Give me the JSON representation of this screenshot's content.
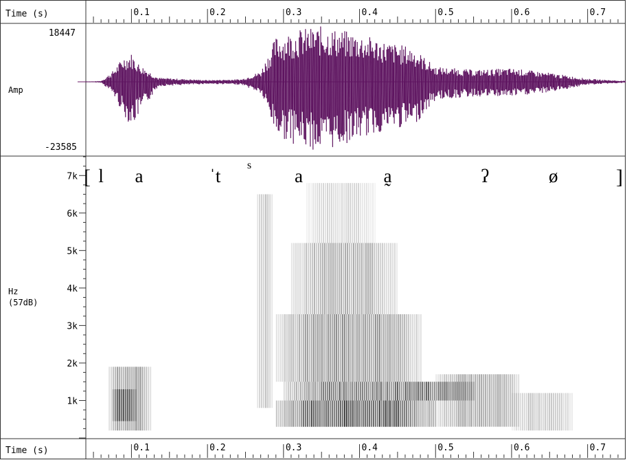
{
  "time_axis": {
    "label": "Time (s)",
    "ticks": [
      "0.1",
      "0.2",
      "0.3",
      "0.4",
      "0.5",
      "0.6",
      "0.7"
    ]
  },
  "waveform": {
    "ylabel": "Amp",
    "max_label": "18447",
    "min_label": "-23585"
  },
  "spectrogram": {
    "ylabel_line1": "Hz",
    "ylabel_line2": "(57dB)",
    "freq_ticks": [
      "7k",
      "6k",
      "5k",
      "4k",
      "3k",
      "2k",
      "1k"
    ]
  },
  "transcription": {
    "open": "[",
    "close": "]",
    "segments": [
      {
        "text": "l",
        "t": 0.06
      },
      {
        "text": "a",
        "t": 0.11
      },
      {
        "text": "ˈt",
        "t": 0.21
      },
      {
        "text": "s",
        "t": 0.255,
        "superscript": true
      },
      {
        "text": "a",
        "t": 0.32
      },
      {
        "text": "a̰",
        "t": 0.437
      },
      {
        "text": "ʔ",
        "t": 0.565
      },
      {
        "text": "ø",
        "t": 0.655
      }
    ]
  },
  "chart_data": {
    "type": "area",
    "title": "",
    "xlabel": "Time (s)",
    "xlim": [
      0.04,
      0.75
    ],
    "waveform": {
      "ylabel": "Amp",
      "ylim": [
        -23585,
        18447
      ],
      "envelope": {
        "t": [
          0.04,
          0.06,
          0.075,
          0.09,
          0.1,
          0.11,
          0.135,
          0.15,
          0.2,
          0.245,
          0.27,
          0.29,
          0.32,
          0.35,
          0.4,
          0.44,
          0.47,
          0.5,
          0.55,
          0.6,
          0.65,
          0.7,
          0.75
        ],
        "upper": [
          0,
          300,
          3500,
          8500,
          9500,
          6000,
          1400,
          1200,
          600,
          900,
          3500,
          15000,
          17500,
          18447,
          16000,
          13000,
          11500,
          5000,
          4000,
          4500,
          3000,
          1000,
          300
        ],
        "lower": [
          0,
          -300,
          -4000,
          -11500,
          -15000,
          -11000,
          -1500,
          -1300,
          -700,
          -1000,
          -4000,
          -18000,
          -21500,
          -23585,
          -19000,
          -16000,
          -15000,
          -6000,
          -5000,
          -5000,
          -3500,
          -1000,
          -300
        ]
      }
    },
    "spectrogram": {
      "ylabel": "Hz",
      "ylim": [
        0,
        7500
      ],
      "bands": [
        {
          "t0": 0.07,
          "t1": 0.125,
          "f0": 200,
          "f1": 1900,
          "intensity": 0.55
        },
        {
          "t0": 0.075,
          "t1": 0.105,
          "f0": 450,
          "f1": 1300,
          "intensity": 0.75
        },
        {
          "t0": 0.265,
          "t1": 0.285,
          "f0": 800,
          "f1": 6500,
          "intensity": 0.3
        },
        {
          "t0": 0.29,
          "t1": 0.5,
          "f0": 300,
          "f1": 1000,
          "intensity": 0.9
        },
        {
          "t0": 0.3,
          "t1": 0.55,
          "f0": 1000,
          "f1": 1500,
          "intensity": 0.75
        },
        {
          "t0": 0.29,
          "t1": 0.48,
          "f0": 1500,
          "f1": 3300,
          "intensity": 0.55
        },
        {
          "t0": 0.31,
          "t1": 0.45,
          "f0": 3300,
          "f1": 5200,
          "intensity": 0.4
        },
        {
          "t0": 0.33,
          "t1": 0.42,
          "f0": 5200,
          "f1": 6800,
          "intensity": 0.2
        },
        {
          "t0": 0.5,
          "t1": 0.61,
          "f0": 300,
          "f1": 1700,
          "intensity": 0.45
        },
        {
          "t0": 0.6,
          "t1": 0.68,
          "f0": 200,
          "f1": 1200,
          "intensity": 0.3
        }
      ]
    }
  }
}
